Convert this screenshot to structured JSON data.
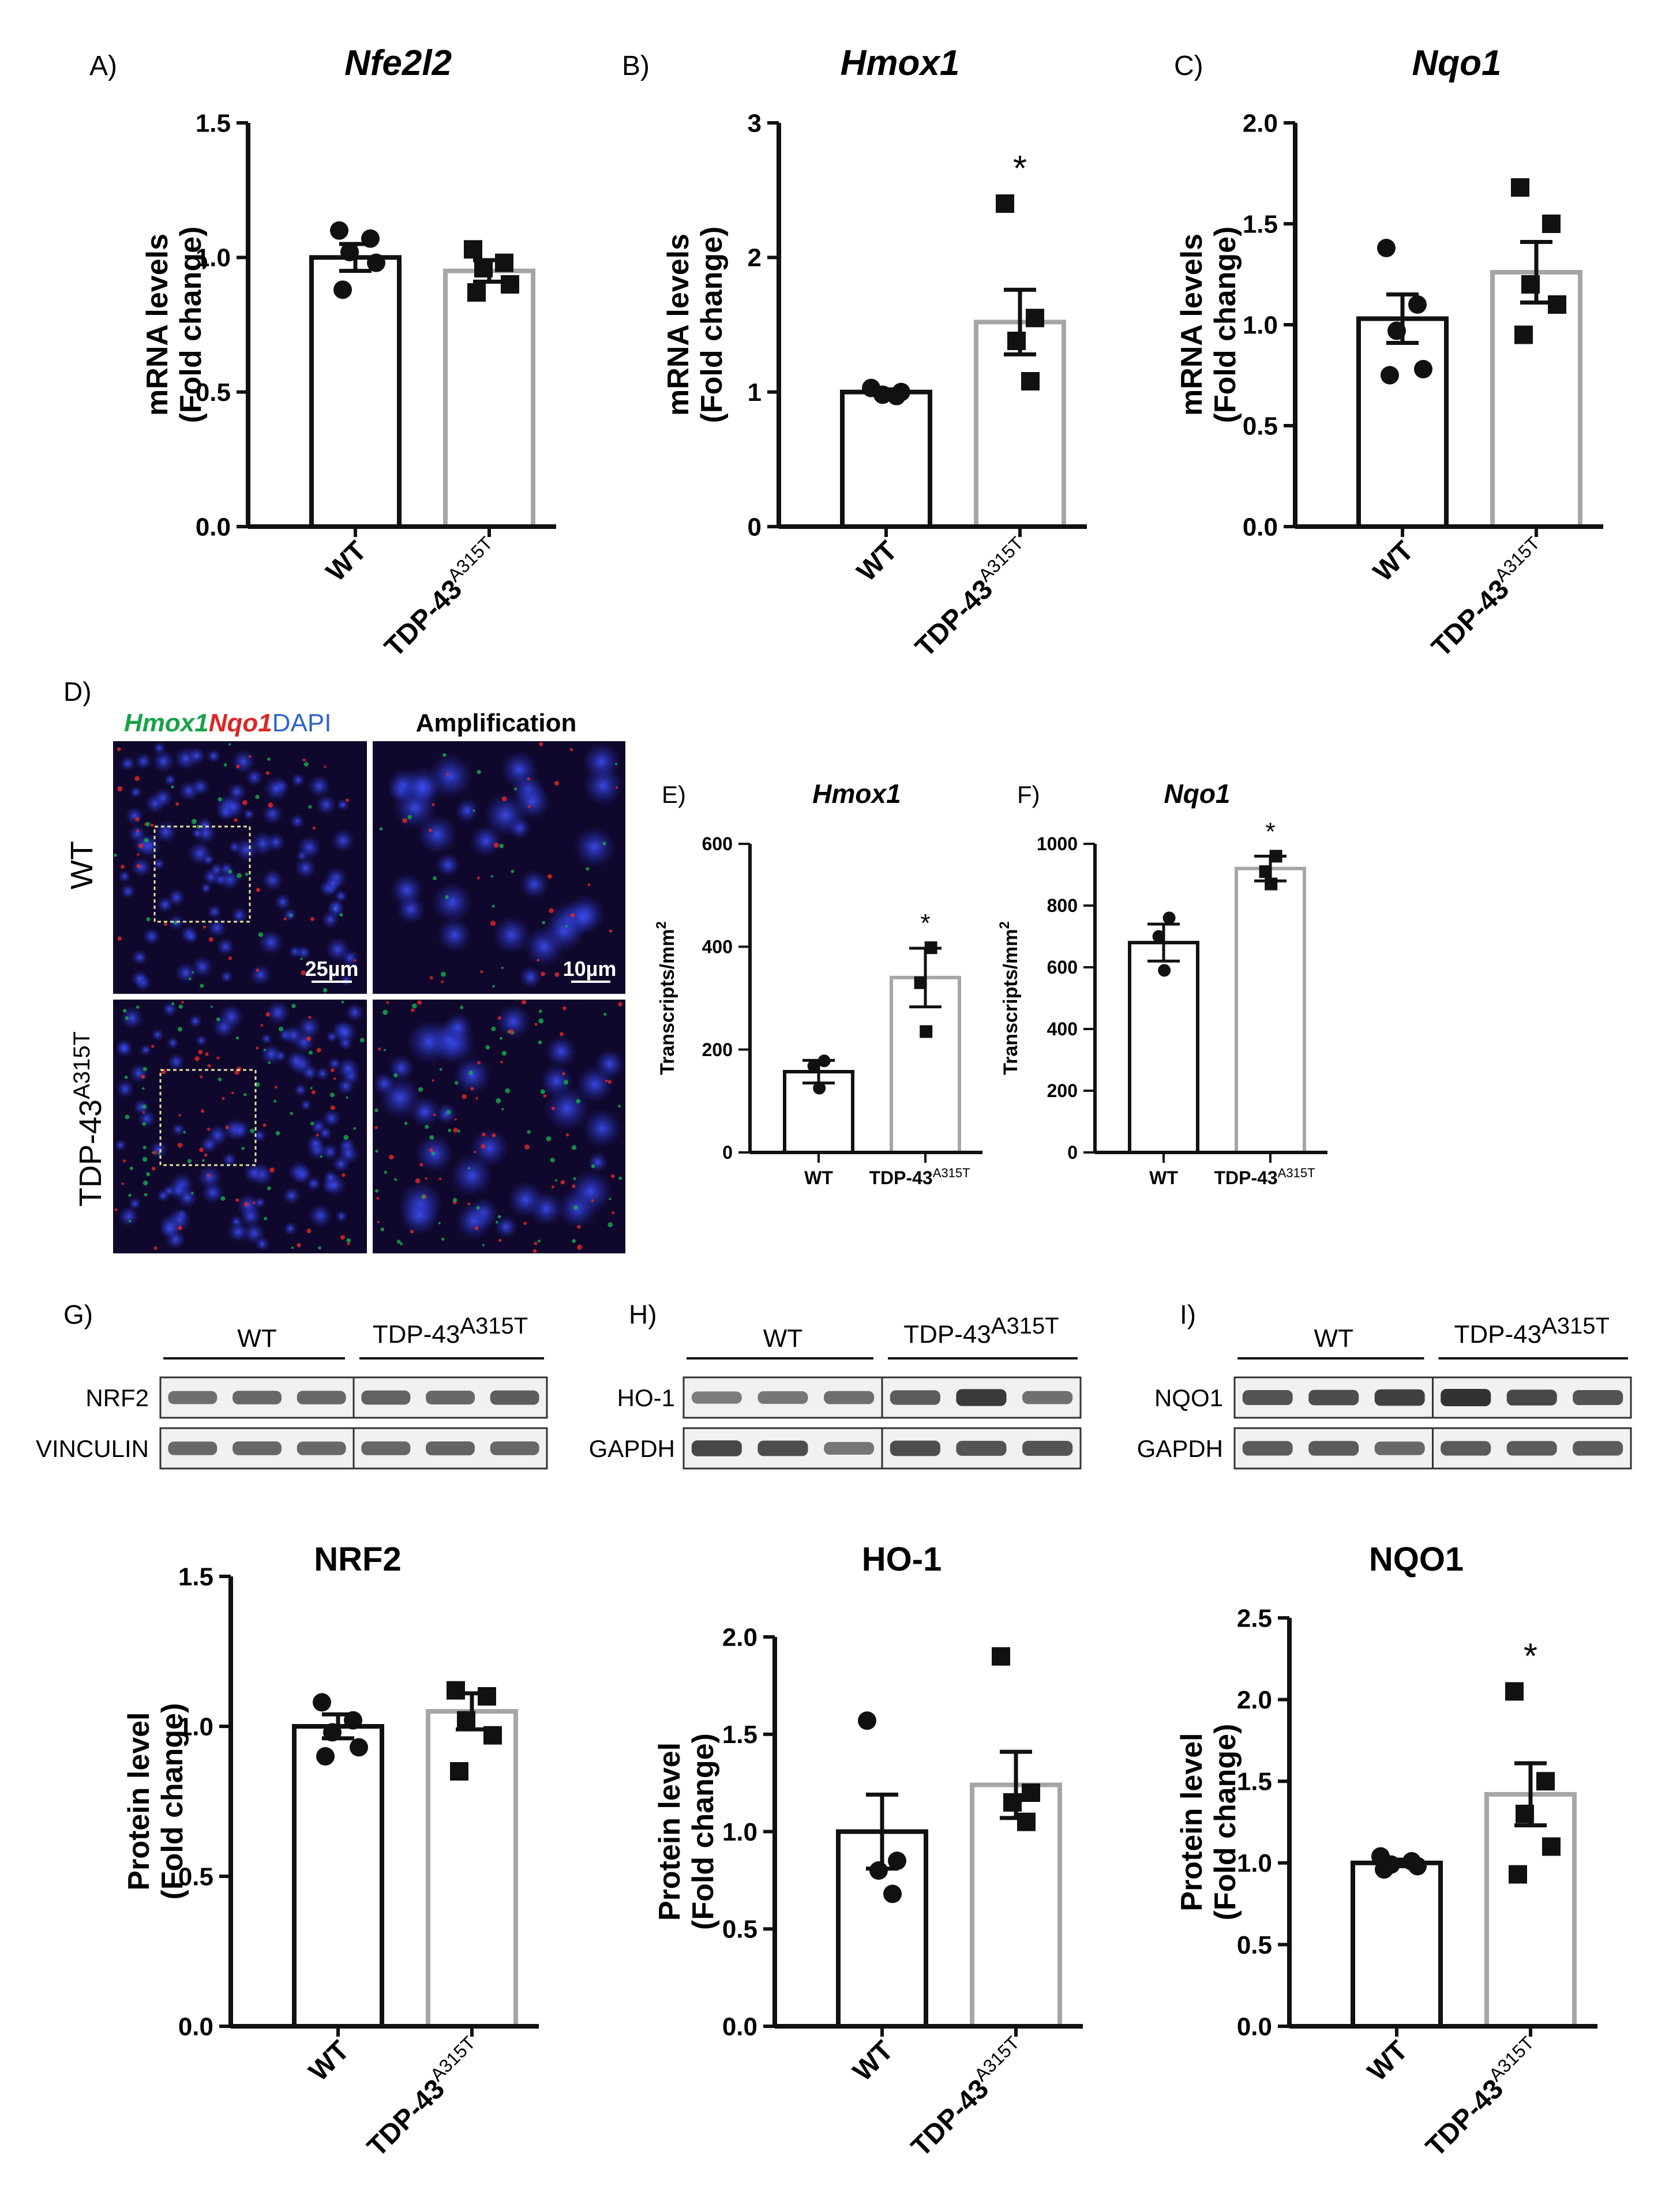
{
  "colors": {
    "wt": "#111111",
    "mut": "#a6a6a6",
    "hmox1_label": "#16a34a",
    "nqo1_label": "#dc2626",
    "dapi_label": "#2f64c8",
    "micro_bg": "#10082c",
    "nuclei": "#2733c8",
    "scale_text": "#ffffff"
  },
  "groups": {
    "wt": "WT",
    "mut_base": "TDP-43",
    "mut_sup": "A315T"
  },
  "panels_mrna": [
    {
      "letter": "A)",
      "title": "Nfe2l2"
    },
    {
      "letter": "B)",
      "title": "Hmox1"
    },
    {
      "letter": "C)",
      "title": "Nqo1"
    }
  ],
  "panels_rnascope": [
    {
      "letter": "E)",
      "title": "Hmox1"
    },
    {
      "letter": "F)",
      "title": "Nqo1"
    }
  ],
  "panels_protein": [
    {
      "title": "NRF2"
    },
    {
      "title": "HO-1"
    },
    {
      "title": "NQO1"
    }
  ],
  "labels": {
    "ylabel_mrna_1": "mRNA levels",
    "ylabel_mrna_2": "(Fold change)",
    "ylabel_transcripts": "Transcripts/mm",
    "ylabel_transcripts_sup": "2",
    "ylabel_protein_1": "Protein level",
    "ylabel_protein_2": "(Fold change)",
    "significance": "*"
  },
  "micrograph": {
    "letter": "D)",
    "stain_hmox1": "Hmox1",
    "stain_nqo1": "Nqo1",
    "stain_dapi": "DAPI",
    "amplification": "Amplification",
    "row_wt": "WT",
    "row_mut_base": "TDP-43",
    "row_mut_sup": "A315T",
    "scale_left": "25µm",
    "scale_right": "10µm"
  },
  "blots": [
    {
      "letter": "G)",
      "group_wt": "WT",
      "group_mut": "TDP-43",
      "group_mut_sup": "A315T",
      "row1": "NRF2",
      "row2": "VINCULIN"
    },
    {
      "letter": "H)",
      "group_wt": "WT",
      "group_mut": "TDP-43",
      "group_mut_sup": "A315T",
      "row1": "HO-1",
      "row2": "GAPDH"
    },
    {
      "letter": "I)",
      "group_wt": "WT",
      "group_mut": "TDP-43",
      "group_mut_sup": "A315T",
      "row1": "NQO1",
      "row2": "GAPDH"
    }
  ],
  "chart_data": [
    {
      "id": "A",
      "type": "bar",
      "title": "Nfe2l2",
      "xlabel": "",
      "ylabel": "mRNA levels (Fold change)",
      "categories": [
        "WT",
        "TDP-43A315T"
      ],
      "ylim": [
        0,
        1.5
      ],
      "yticks": [
        "0.0",
        "0.5",
        "1.0",
        "1.5"
      ],
      "values": [
        1.0,
        0.95
      ],
      "sem": [
        0.05,
        0.04
      ],
      "points": [
        [
          1.1,
          1.07,
          1.02,
          0.98,
          0.88
        ],
        [
          1.03,
          0.98,
          0.96,
          0.9,
          0.87
        ]
      ],
      "significance": [
        "",
        ""
      ]
    },
    {
      "id": "B",
      "type": "bar",
      "title": "Hmox1",
      "xlabel": "",
      "ylabel": "mRNA levels (Fold change)",
      "categories": [
        "WT",
        "TDP-43A315T"
      ],
      "ylim": [
        0,
        3
      ],
      "yticks": [
        "0",
        "1",
        "2",
        "3"
      ],
      "values": [
        1.0,
        1.52
      ],
      "sem": [
        0.02,
        0.24
      ],
      "points": [
        [
          1.03,
          1.0,
          0.98,
          0.97
        ],
        [
          2.4,
          1.55,
          1.38,
          1.08
        ]
      ],
      "significance": [
        "",
        "*"
      ]
    },
    {
      "id": "C",
      "type": "bar",
      "title": "Nqo1",
      "xlabel": "",
      "ylabel": "mRNA levels (Fold change)",
      "categories": [
        "WT",
        "TDP-43A315T"
      ],
      "ylim": [
        0,
        2.0
      ],
      "yticks": [
        "0.0",
        "0.5",
        "1.0",
        "1.5",
        "2.0"
      ],
      "values": [
        1.03,
        1.26
      ],
      "sem": [
        0.12,
        0.15
      ],
      "points": [
        [
          1.38,
          1.1,
          0.97,
          0.78,
          0.75
        ],
        [
          1.68,
          1.5,
          1.2,
          1.1,
          0.95
        ]
      ],
      "significance": [
        "",
        ""
      ]
    },
    {
      "id": "E",
      "type": "bar",
      "title": "Hmox1",
      "xlabel": "",
      "ylabel": "Transcripts/mm2",
      "categories": [
        "WT",
        "TDP-43A315T"
      ],
      "ylim": [
        0,
        600
      ],
      "yticks": [
        "0",
        "200",
        "400",
        "600"
      ],
      "values": [
        157,
        340
      ],
      "sem": [
        22,
        57
      ],
      "points": [
        [
          178,
          168,
          125
        ],
        [
          398,
          330,
          235
        ]
      ],
      "significance": [
        "",
        "*"
      ]
    },
    {
      "id": "F",
      "type": "bar",
      "title": "Nqo1",
      "xlabel": "",
      "ylabel": "Transcripts/mm2",
      "categories": [
        "WT",
        "TDP-43A315T"
      ],
      "ylim": [
        0,
        1000
      ],
      "yticks": [
        "0",
        "200",
        "400",
        "600",
        "800",
        "1000"
      ],
      "values": [
        680,
        920
      ],
      "sem": [
        60,
        40
      ],
      "points": [
        [
          760,
          700,
          590
        ],
        [
          960,
          910,
          870
        ]
      ],
      "significance": [
        "",
        "*"
      ]
    },
    {
      "id": "G",
      "type": "bar",
      "title": "NRF2",
      "xlabel": "",
      "ylabel": "Protein level (Fold change)",
      "categories": [
        "WT",
        "TDP-43A315T"
      ],
      "ylim": [
        0,
        1.5
      ],
      "yticks": [
        "0.0",
        "0.5",
        "1.0",
        "1.5"
      ],
      "values": [
        1.0,
        1.05
      ],
      "sem": [
        0.04,
        0.06
      ],
      "points": [
        [
          1.08,
          1.02,
          0.98,
          0.93,
          0.9
        ],
        [
          1.12,
          1.1,
          1.02,
          0.97,
          0.85
        ]
      ],
      "significance": [
        "",
        ""
      ]
    },
    {
      "id": "H",
      "type": "bar",
      "title": "HO-1",
      "xlabel": "",
      "ylabel": "Protein level (Fold change)",
      "categories": [
        "WT",
        "TDP-43A315T"
      ],
      "ylim": [
        0,
        2.0
      ],
      "yticks": [
        "0.0",
        "0.5",
        "1.0",
        "1.5",
        "2.0"
      ],
      "values": [
        1.0,
        1.24
      ],
      "sem": [
        0.19,
        0.17
      ],
      "points": [
        [
          1.57,
          0.85,
          0.8,
          0.68
        ],
        [
          1.9,
          1.2,
          1.15,
          1.05
        ]
      ],
      "significance": [
        "",
        ""
      ]
    },
    {
      "id": "I",
      "type": "bar",
      "title": "NQO1",
      "xlabel": "",
      "ylabel": "Protein level (Fold change)",
      "categories": [
        "WT",
        "TDP-43A315T"
      ],
      "ylim": [
        0,
        2.5
      ],
      "yticks": [
        "0.0",
        "0.5",
        "1.0",
        "1.5",
        "2.0",
        "2.5"
      ],
      "values": [
        1.0,
        1.42
      ],
      "sem": [
        0.02,
        0.19
      ],
      "points": [
        [
          1.04,
          1.01,
          0.99,
          0.98,
          0.96
        ],
        [
          2.05,
          1.5,
          1.3,
          1.1,
          0.93
        ]
      ],
      "significance": [
        "",
        "*"
      ]
    }
  ]
}
